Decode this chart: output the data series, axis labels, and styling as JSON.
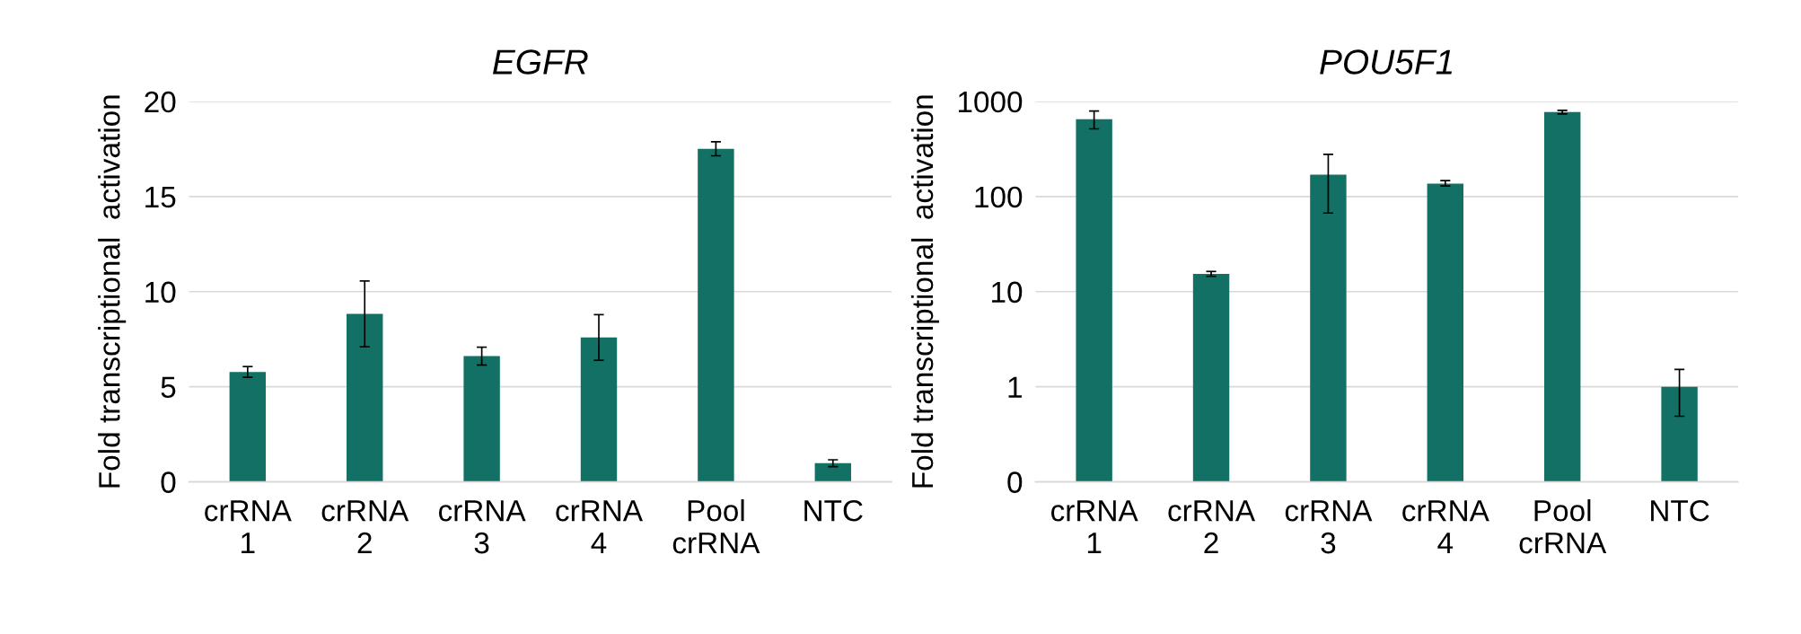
{
  "chart_data": [
    {
      "type": "bar",
      "title": "EGFR",
      "ylabel": "Fold transcriptional  activation",
      "categories": [
        "crRNA\n1",
        "crRNA\n2",
        "crRNA\n3",
        "crRNA\n4",
        "Pool\ncrRNA",
        "NTC"
      ],
      "color": "#127064",
      "values": [
        5.78,
        8.83,
        6.61,
        7.59,
        17.51,
        0.98
      ],
      "errors": [
        [
          5.5,
          6.06
        ],
        [
          7.1,
          10.56
        ],
        [
          6.14,
          7.08
        ],
        [
          6.39,
          8.79
        ],
        [
          17.14,
          17.88
        ],
        [
          0.8,
          1.16
        ]
      ],
      "ylim": [
        0,
        20
      ],
      "yticks": [
        0,
        5,
        10,
        15,
        20
      ],
      "grid": "y",
      "legend": false
    },
    {
      "type": "bar",
      "title": "POU5F1",
      "ylabel": "Fold transcriptional  activation",
      "categories": [
        "crRNA\n1",
        "crRNA\n2",
        "crRNA\n3",
        "crRNA\n4",
        "Pool\ncrRNA",
        "NTC"
      ],
      "color": "#127064",
      "values": [
        650,
        15.4,
        170,
        137,
        772,
        1.0
      ],
      "errors": [
        [
          515,
          794
        ],
        [
          14.5,
          16.3
        ],
        [
          67,
          278
        ],
        [
          129,
          147
        ],
        [
          740,
          805
        ],
        [
          0.49,
          1.52
        ]
      ],
      "log": "y",
      "ylim": [
        0.1,
        1000
      ],
      "yticks": [
        {
          "value": 0.1,
          "label": "0"
        },
        1,
        10,
        100,
        1000
      ],
      "grid": "y",
      "legend": false
    }
  ]
}
